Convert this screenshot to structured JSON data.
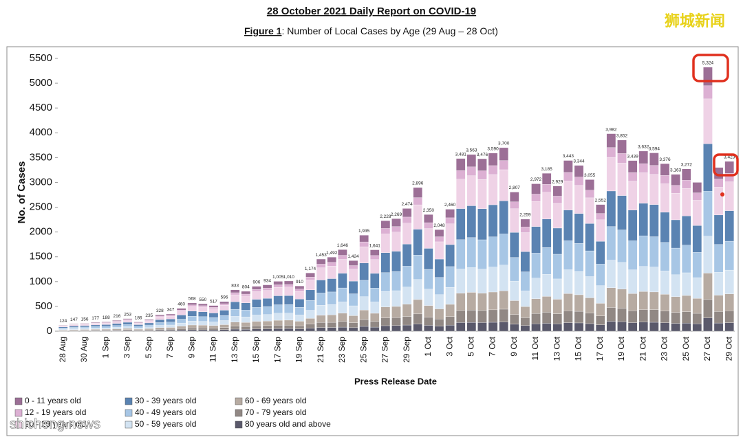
{
  "chart_data": {
    "type": "stacked_bar",
    "title": "28 October 2021 Daily Report on COVID-19",
    "figure_label": "Figure 1",
    "subtitle": ": Number of Local Cases by Age (29 Aug – 28 Oct)",
    "x_label": "Press Release Date",
    "y_label": "No. of Cases",
    "ylim": [
      0,
      5500
    ],
    "yticks": [
      0,
      500,
      1000,
      1500,
      2000,
      2500,
      3000,
      3500,
      4000,
      4500,
      5000,
      5500
    ],
    "categories": [
      "28 Aug",
      null,
      "30 Aug",
      null,
      "1 Sep",
      null,
      "3 Sep",
      null,
      "5 Sep",
      null,
      "7 Sep",
      null,
      "9 Sep",
      null,
      "11 Sep",
      null,
      "13 Sep",
      null,
      "15 Sep",
      null,
      "17 Sep",
      null,
      "19 Sep",
      null,
      "21 Sep",
      null,
      "23 Sep",
      null,
      "25 Sep",
      null,
      "27 Sep",
      null,
      "29 Sep",
      null,
      "1 Oct",
      null,
      "3 Oct",
      null,
      "5 Oct",
      null,
      "7 Oct",
      null,
      "9 Oct",
      null,
      "11 Oct",
      null,
      "13 Oct",
      null,
      "15 Oct",
      null,
      "17 Oct",
      null,
      "19 Oct",
      null,
      "21 Oct",
      null,
      "23 Oct",
      null,
      "25 Oct",
      null,
      "27 Oct",
      null,
      "29 Oct"
    ],
    "totals": [
      124,
      147,
      156,
      177,
      188,
      216,
      253,
      186,
      235,
      328,
      347,
      460,
      568,
      550,
      517,
      596,
      833,
      804,
      906,
      934,
      1005,
      1010,
      910,
      1174,
      1453,
      1492,
      1646,
      1424,
      1935,
      1641,
      2228,
      2269,
      2474,
      2896,
      2350,
      2048,
      2460,
      3481,
      3563,
      3476,
      3590,
      3700,
      2807,
      2259,
      2972,
      3185,
      2929,
      3443,
      3344,
      3055,
      2552,
      3982,
      3852,
      3439,
      3632,
      3594,
      3376,
      3163,
      3272,
      null,
      5324,
      null,
      3423
    ],
    "total_labels": [
      "124",
      "147",
      "156",
      "177",
      "188",
      "216",
      "253",
      "186",
      "235",
      "328",
      "347",
      "460",
      "568",
      "550",
      "517",
      "596",
      "833",
      "804",
      "906",
      "934",
      "1,005",
      "1,010",
      "910",
      "1,174",
      "1,453",
      "1,492",
      "1,646",
      "1,424",
      "1,935",
      "1,641",
      "2,228",
      "2,269",
      "2,474",
      "2,896",
      "2,350",
      "2,048",
      "2,460",
      "3,481",
      "3,563",
      "3,476",
      "3,590",
      "3,700",
      "2,807",
      "2,259",
      "2,972",
      "3,185",
      "2,929",
      "3,443",
      "3,344",
      "3,055",
      "2,552",
      "3,982",
      "3,852",
      "3,439",
      "3,632",
      "3,594",
      "3,376",
      "3,163",
      "3,272",
      null,
      "5,324",
      null,
      "3,423"
    ],
    "series": [
      {
        "name": "0 - 11 years old",
        "color": "#9c6f96",
        "values": [
          9,
          10,
          11,
          12,
          13,
          15,
          18,
          13,
          16,
          23,
          24,
          32,
          40,
          39,
          36,
          42,
          58,
          56,
          63,
          65,
          70,
          71,
          64,
          82,
          102,
          104,
          115,
          100,
          135,
          115,
          156,
          159,
          173,
          203,
          165,
          143,
          172,
          244,
          249,
          243,
          251,
          259,
          196,
          158,
          208,
          223,
          205,
          241,
          234,
          214,
          179,
          279,
          270,
          241,
          254,
          252,
          236,
          221,
          229,
          210,
          373,
          231,
          240
        ]
      },
      {
        "name": "12 - 19 years old",
        "color": "#dcb0d3",
        "values": [
          6,
          7,
          8,
          9,
          9,
          11,
          13,
          9,
          12,
          16,
          17,
          23,
          28,
          28,
          26,
          30,
          42,
          40,
          45,
          47,
          50,
          51,
          46,
          59,
          73,
          75,
          82,
          71,
          97,
          82,
          111,
          113,
          124,
          145,
          118,
          102,
          123,
          174,
          178,
          174,
          180,
          185,
          140,
          113,
          149,
          159,
          146,
          172,
          167,
          153,
          128,
          199,
          193,
          172,
          182,
          180,
          169,
          158,
          164,
          150,
          266,
          165,
          171
        ]
      },
      {
        "name": "20 - 29 years old",
        "color": "#efd2e6",
        "values": [
          21,
          25,
          27,
          30,
          32,
          37,
          43,
          32,
          40,
          56,
          59,
          78,
          97,
          94,
          88,
          101,
          142,
          137,
          154,
          159,
          171,
          172,
          155,
          200,
          247,
          254,
          280,
          242,
          329,
          279,
          379,
          386,
          421,
          492,
          400,
          348,
          418,
          592,
          606,
          591,
          610,
          629,
          477,
          384,
          505,
          541,
          498,
          585,
          568,
          519,
          434,
          677,
          655,
          585,
          617,
          611,
          574,
          538,
          556,
          510,
          905,
          561,
          582
        ]
      },
      {
        "name": "30 - 39 years old",
        "color": "#5a83b2",
        "values": [
          22,
          26,
          28,
          32,
          34,
          39,
          46,
          33,
          42,
          59,
          62,
          83,
          102,
          99,
          93,
          107,
          150,
          145,
          163,
          168,
          181,
          182,
          164,
          211,
          262,
          269,
          296,
          256,
          348,
          295,
          401,
          408,
          445,
          521,
          423,
          369,
          443,
          627,
          641,
          626,
          646,
          666,
          505,
          407,
          535,
          573,
          527,
          620,
          602,
          550,
          459,
          717,
          693,
          619,
          654,
          647,
          608,
          569,
          589,
          540,
          958,
          594,
          616
        ]
      },
      {
        "name": "40 - 49 years old",
        "color": "#a7c6e5",
        "values": [
          21,
          25,
          27,
          30,
          32,
          37,
          43,
          32,
          40,
          56,
          59,
          78,
          97,
          94,
          88,
          101,
          142,
          137,
          154,
          159,
          171,
          172,
          155,
          200,
          247,
          254,
          280,
          242,
          329,
          279,
          379,
          386,
          421,
          492,
          400,
          348,
          418,
          592,
          606,
          591,
          610,
          629,
          477,
          384,
          505,
          541,
          498,
          585,
          568,
          519,
          434,
          677,
          655,
          585,
          617,
          611,
          574,
          538,
          556,
          510,
          905,
          561,
          582
        ]
      },
      {
        "name": "50 - 59 years old",
        "color": "#d3e3f2",
        "values": [
          17,
          21,
          22,
          25,
          26,
          30,
          35,
          26,
          33,
          46,
          49,
          64,
          80,
          77,
          72,
          83,
          117,
          113,
          127,
          131,
          141,
          141,
          127,
          164,
          203,
          209,
          230,
          199,
          271,
          230,
          312,
          318,
          346,
          405,
          329,
          287,
          344,
          487,
          499,
          487,
          503,
          518,
          393,
          316,
          416,
          446,
          410,
          482,
          468,
          428,
          357,
          557,
          539,
          481,
          508,
          503,
          473,
          443,
          458,
          420,
          745,
          462,
          479
        ]
      },
      {
        "name": "60 - 69 years old",
        "color": "#b7aba2",
        "values": [
          12,
          15,
          16,
          18,
          19,
          22,
          25,
          19,
          24,
          33,
          35,
          46,
          57,
          55,
          52,
          60,
          83,
          80,
          91,
          93,
          101,
          101,
          91,
          117,
          145,
          149,
          165,
          142,
          194,
          164,
          223,
          227,
          247,
          290,
          235,
          205,
          246,
          348,
          356,
          348,
          359,
          370,
          281,
          226,
          297,
          319,
          293,
          344,
          334,
          306,
          255,
          398,
          385,
          344,
          363,
          359,
          338,
          316,
          327,
          300,
          532,
          330,
          342
        ]
      },
      {
        "name": "70 - 79 years old",
        "color": "#918884",
        "values": [
          9,
          10,
          11,
          12,
          13,
          15,
          18,
          13,
          16,
          23,
          24,
          32,
          40,
          39,
          36,
          42,
          58,
          56,
          63,
          65,
          70,
          71,
          64,
          82,
          102,
          104,
          115,
          100,
          135,
          115,
          156,
          159,
          173,
          203,
          165,
          143,
          172,
          244,
          249,
          243,
          251,
          259,
          196,
          158,
          208,
          223,
          205,
          241,
          234,
          214,
          179,
          279,
          270,
          241,
          254,
          252,
          236,
          221,
          229,
          210,
          373,
          231,
          240
        ]
      },
      {
        "name": "80 years old and above",
        "color": "#5a596b",
        "values": [
          6,
          7,
          8,
          9,
          9,
          11,
          13,
          9,
          12,
          16,
          17,
          23,
          28,
          28,
          26,
          30,
          42,
          40,
          45,
          47,
          50,
          51,
          46,
          59,
          73,
          75,
          82,
          71,
          97,
          82,
          111,
          113,
          124,
          145,
          118,
          102,
          123,
          174,
          178,
          174,
          180,
          185,
          140,
          113,
          149,
          159,
          146,
          172,
          167,
          153,
          128,
          199,
          193,
          172,
          182,
          180,
          169,
          158,
          164,
          150,
          266,
          165,
          171
        ]
      }
    ]
  },
  "watermark": {
    "top": "狮城新闻",
    "bottom": "shicheng.news"
  }
}
